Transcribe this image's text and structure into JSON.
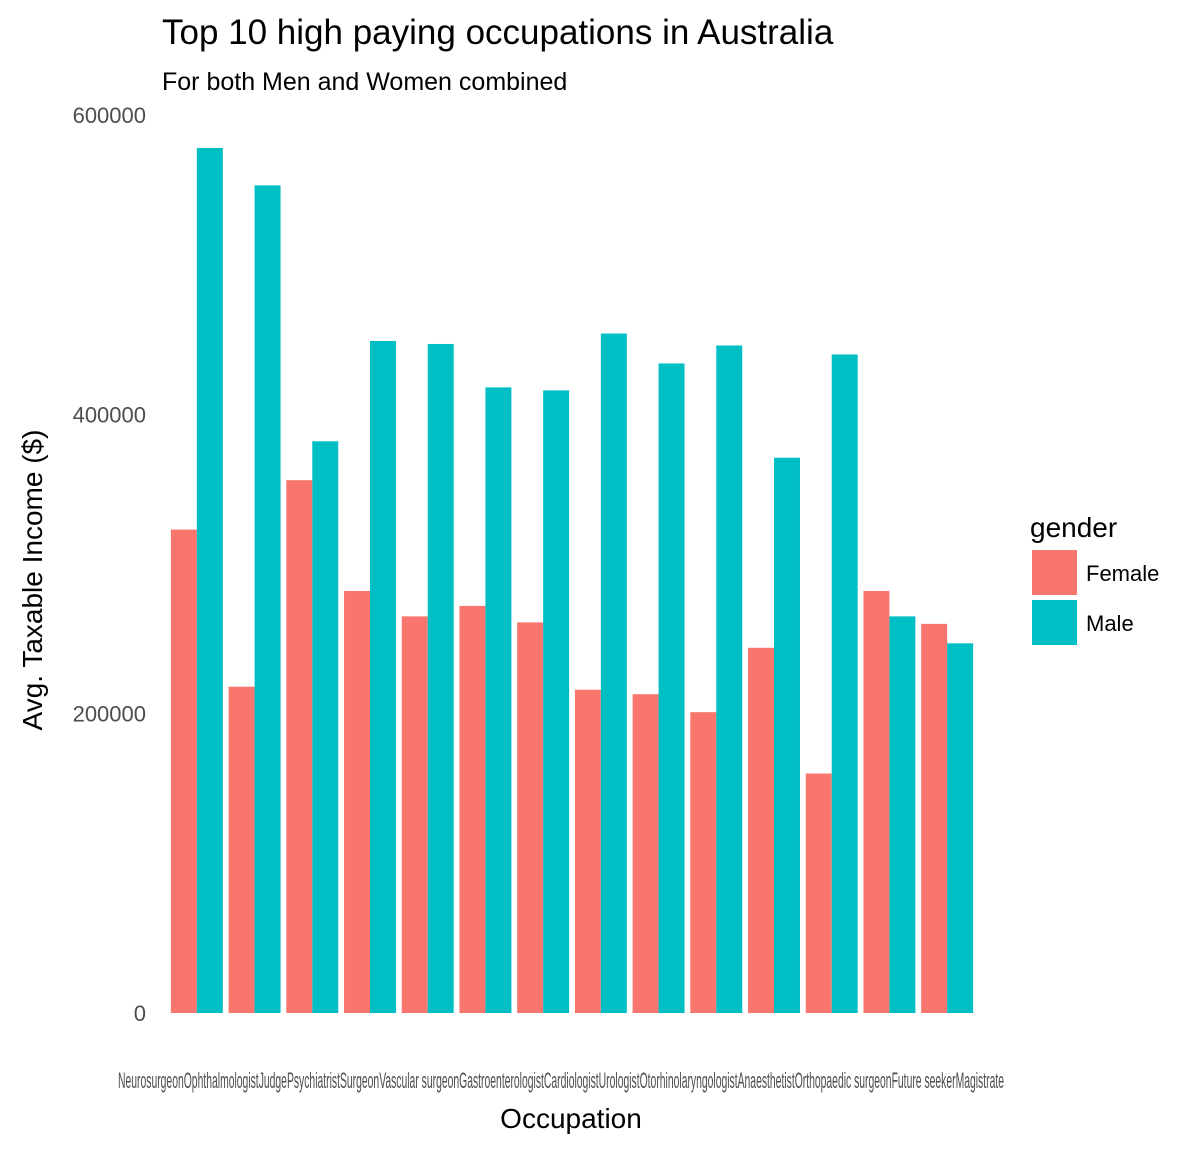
{
  "chart_data": {
    "type": "bar",
    "title": "Top 10 high paying occupations in Australia",
    "subtitle": "For both Men and Women combined",
    "xlabel": "Occupation",
    "ylabel": "Avg. Taxable Income ($)",
    "ylim": [
      0,
      600000
    ],
    "yticks": [
      "0",
      "200000",
      "400000",
      "600000"
    ],
    "grid": false,
    "legend": {
      "title": "gender",
      "position": "right"
    },
    "categories": [
      "Neurosurgeon",
      "Ophthalmologist",
      "Judge",
      "Psychiatrist",
      "Surgeon",
      "Vascular surgeon",
      "Gastroenterologist",
      "Cardiologist",
      "Urologist",
      "Otorhinolaryngologist",
      "Anaesthetist",
      "Orthopaedic surgeon",
      "Future seeker",
      "Magistrate"
    ],
    "category_tick_text": "NeurosurgeonOphthalmologistJudgePsychiatristSurgeonVascular surgeonGastroenterologistCardiologistUrologistOtorhinolaryngologistAnaesthetistOrthopaedic surgeonFuture seekerMagistrate",
    "series": [
      {
        "name": "Female",
        "color": "#F8766D",
        "values": [
          323000,
          218000,
          356000,
          282000,
          265000,
          272000,
          261000,
          216000,
          213000,
          201000,
          244000,
          160000,
          282000,
          260000
        ]
      },
      {
        "name": "Male",
        "color": "#00BFC4",
        "values": [
          578000,
          553000,
          382000,
          449000,
          447000,
          418000,
          416000,
          454000,
          434000,
          446000,
          371000,
          440000,
          265000,
          247000
        ]
      }
    ]
  }
}
